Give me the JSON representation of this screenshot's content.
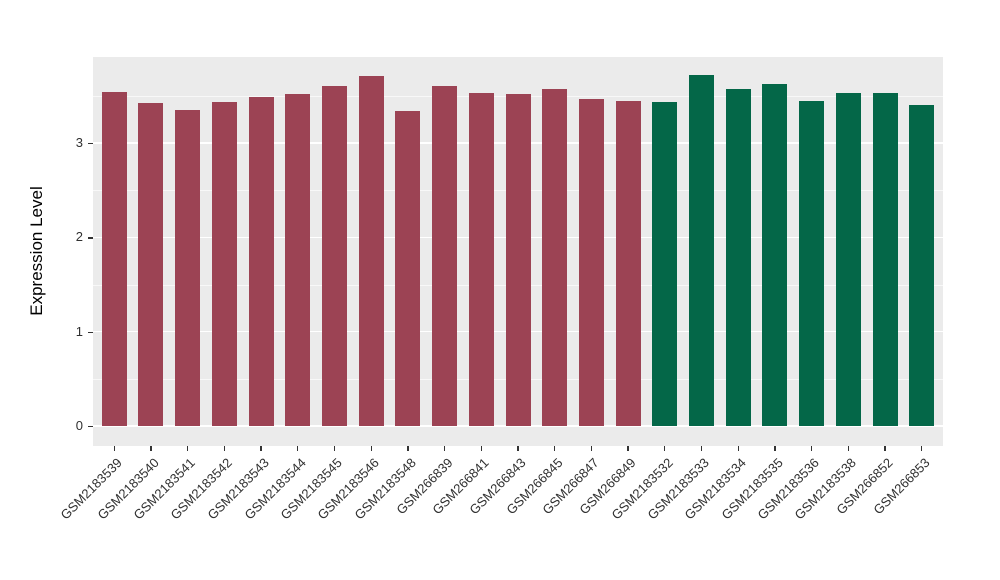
{
  "figure": {
    "background": "#FFFFFF",
    "title": ""
  },
  "chart_data": {
    "type": "bar",
    "title": "",
    "xlabel": "",
    "ylabel": "Expression Level",
    "ylim": [
      0,
      3.9
    ],
    "yticks": [
      0,
      1,
      2,
      3
    ],
    "yminorticks": [
      0.5,
      1.5,
      2.5,
      3.5
    ],
    "grid": true,
    "legend": "none",
    "panel_background": "#EBEBEB",
    "gridline_color": "#FFFFFF",
    "axis_text_color": "#303030",
    "group_colors": {
      "group_a": "#9C4354",
      "group_b": "#046748"
    },
    "categories": [
      "GSM2183539",
      "GSM2183540",
      "GSM2183541",
      "GSM2183542",
      "GSM2183543",
      "GSM2183544",
      "GSM2183545",
      "GSM2183546",
      "GSM2183548",
      "GSM266839",
      "GSM266841",
      "GSM266843",
      "GSM266845",
      "GSM266847",
      "GSM266849",
      "GSM2183532",
      "GSM2183533",
      "GSM2183534",
      "GSM2183535",
      "GSM2183536",
      "GSM2183538",
      "GSM266852",
      "GSM266853"
    ],
    "values": [
      3.54,
      3.42,
      3.35,
      3.44,
      3.49,
      3.52,
      3.61,
      3.71,
      3.34,
      3.61,
      3.53,
      3.52,
      3.57,
      3.47,
      3.45,
      3.44,
      3.72,
      3.57,
      3.63,
      3.45,
      3.53,
      3.53,
      3.4
    ],
    "bar_colors": [
      "#9C4354",
      "#9C4354",
      "#9C4354",
      "#9C4354",
      "#9C4354",
      "#9C4354",
      "#9C4354",
      "#9C4354",
      "#9C4354",
      "#9C4354",
      "#9C4354",
      "#9C4354",
      "#9C4354",
      "#9C4354",
      "#9C4354",
      "#046748",
      "#046748",
      "#046748",
      "#046748",
      "#046748",
      "#046748",
      "#046748",
      "#046748"
    ]
  }
}
